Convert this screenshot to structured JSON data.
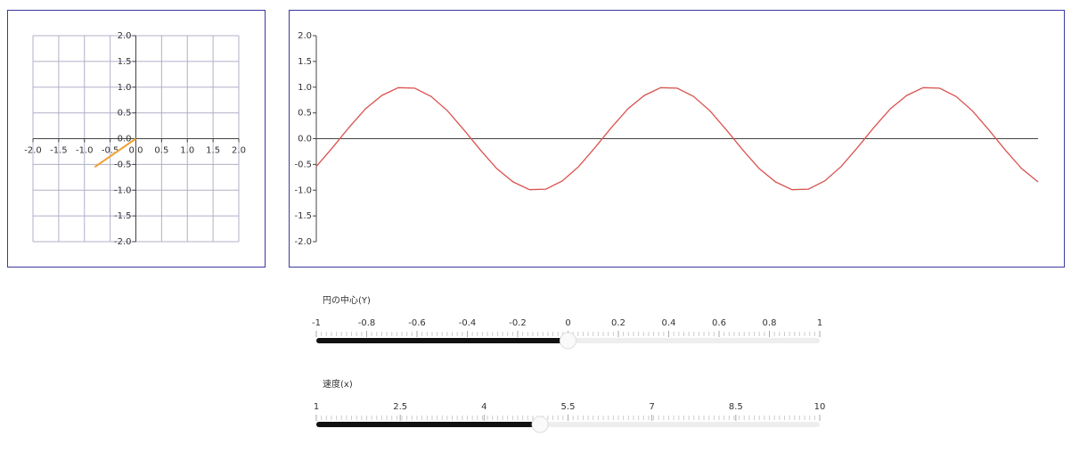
{
  "chart_data": [
    {
      "type": "line",
      "grid": true,
      "axes_through_origin": true,
      "xlim": [
        -2,
        2
      ],
      "ylim": [
        -2,
        2
      ],
      "xticks": [
        {
          "value": -2,
          "label": "-2.0"
        },
        {
          "value": -1.5,
          "label": "-1.5"
        },
        {
          "value": -1,
          "label": "-1.0"
        },
        -0.5,
        {
          "value": 0,
          "label": "0.0"
        },
        0.5,
        {
          "value": 1,
          "label": "1.0"
        },
        {
          "value": 1.5,
          "label": "1.5"
        },
        {
          "value": 2,
          "label": "2.0"
        }
      ],
      "yticks": [
        {
          "value": -2,
          "label": "-2.0"
        },
        {
          "value": -1.5,
          "label": "-1.5"
        },
        {
          "value": -1,
          "label": "-1.0"
        },
        -0.5,
        {
          "value": 0,
          "label": "0.0"
        },
        0.5,
        {
          "value": 1,
          "label": "1.0"
        },
        {
          "value": 1.5,
          "label": "1.5"
        },
        {
          "value": 2,
          "label": "2.0"
        }
      ],
      "x": [
        -0.8,
        0
      ],
      "series": [
        {
          "color": "#f0a030",
          "values": [
            -0.55,
            0
          ]
        }
      ]
    },
    {
      "type": "line",
      "grid": false,
      "axes_through_origin": false,
      "xlim": [
        0,
        11
      ],
      "ylim": [
        -2,
        2
      ],
      "yticks": [
        {
          "value": -2,
          "label": "-2.0"
        },
        {
          "value": -1.5,
          "label": "-1.5"
        },
        {
          "value": -1,
          "label": "-1.0"
        },
        -0.5,
        {
          "value": 0,
          "label": "0.0"
        },
        0.5,
        {
          "value": 1,
          "label": "1.0"
        },
        {
          "value": 1.5,
          "label": "1.5"
        },
        {
          "value": 2,
          "label": "2.0"
        }
      ],
      "x": [
        0,
        0.25,
        0.5,
        0.75,
        1,
        1.25,
        1.5,
        1.75,
        2,
        2.25,
        2.5,
        2.75,
        3,
        3.25,
        3.5,
        3.75,
        4,
        4.25,
        4.5,
        4.75,
        5,
        5.25,
        5.5,
        5.75,
        6,
        6.25,
        6.5,
        6.75,
        7,
        7.25,
        7.5,
        7.75,
        8,
        8.25,
        8.5,
        8.75,
        9,
        9.25,
        9.5,
        9.75,
        10,
        10.25,
        10.5,
        10.75,
        11
      ],
      "series": [
        {
          "color": "#d9534f",
          "values": [
            -0.54,
            -0.17,
            0.22,
            0.58,
            0.84,
            0.99,
            0.98,
            0.82,
            0.54,
            0.17,
            -0.22,
            -0.58,
            -0.84,
            -0.99,
            -0.98,
            -0.82,
            -0.54,
            -0.17,
            0.22,
            0.58,
            0.84,
            0.99,
            0.98,
            0.82,
            0.54,
            0.17,
            -0.22,
            -0.58,
            -0.84,
            -0.99,
            -0.98,
            -0.82,
            -0.54,
            -0.17,
            0.22,
            0.58,
            0.84,
            0.99,
            0.98,
            0.82,
            0.54,
            0.17,
            -0.22,
            -0.58,
            -0.84
          ]
        }
      ]
    }
  ],
  "sliders": [
    {
      "label": "円の中心(Y)",
      "min": -1,
      "max": 1,
      "value": 0,
      "ticks": [
        -1,
        -0.8,
        -0.6,
        -0.4,
        -0.2,
        0,
        0.2,
        0.4,
        0.6,
        0.8,
        1
      ]
    },
    {
      "label": "速度(x)",
      "min": 1,
      "max": 10,
      "value": 5,
      "ticks": [
        1,
        2.5,
        4,
        5.5,
        7,
        8.5,
        10
      ]
    }
  ]
}
